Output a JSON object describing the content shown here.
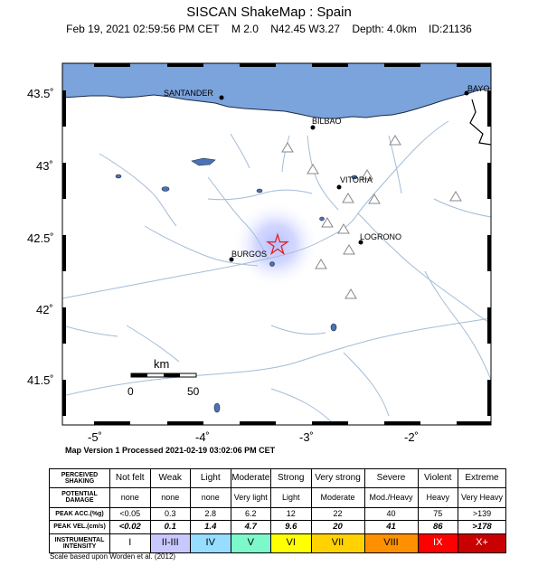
{
  "header": {
    "title": "SISCAN ShakeMap : Spain",
    "date": "Feb 19, 2021 02:59:56 PM CET",
    "magnitude": "M 2.0",
    "location": "N42.45 W3.27",
    "depth": "Depth: 4.0km",
    "event_id": "ID:21136"
  },
  "map": {
    "lat_ticks": [
      "43.5˚",
      "43˚",
      "42.5˚",
      "42˚",
      "41.5˚"
    ],
    "lon_ticks": [
      "-5˚",
      "-4˚",
      "-3˚",
      "-2˚"
    ],
    "scale_unit": "km",
    "scale_start": "0",
    "scale_end": "50",
    "cities": [
      {
        "name": "SANTANDER"
      },
      {
        "name": "BILBAO"
      },
      {
        "name": "VITORIA"
      },
      {
        "name": "LOGRONO"
      },
      {
        "name": "BURGOS"
      },
      {
        "name": "BAYO"
      }
    ],
    "colors": {
      "sea": "#7ba3dc",
      "rivers": "#a3bcd6",
      "lakes": "#4b72b5",
      "epicenter": "#e02020"
    }
  },
  "version_line": "Map Version 1 Processed 2021-02-19 03:02:06 PM CET",
  "legend": {
    "rows": {
      "shaking": {
        "label1": "PERCEIVED",
        "label2": "SHAKING",
        "values": [
          "Not felt",
          "Weak",
          "Light",
          "Moderate",
          "Strong",
          "Very strong",
          "Severe",
          "Violent",
          "Extreme"
        ]
      },
      "damage": {
        "label1": "POTENTIAL",
        "label2": "DAMAGE",
        "values": [
          "none",
          "none",
          "none",
          "Very light",
          "Light",
          "Moderate",
          "Mod./Heavy",
          "Heavy",
          "Very Heavy"
        ]
      },
      "acc": {
        "label1": "PEAK ACC.(%g)",
        "values": [
          "<0.05",
          "0.3",
          "2.8",
          "6.2",
          "12",
          "22",
          "40",
          "75",
          ">139"
        ]
      },
      "vel": {
        "label1": "PEAK VEL.(cm/s)",
        "values": [
          "<0.02",
          "0.1",
          "1.4",
          "4.7",
          "9.6",
          "20",
          "41",
          "86",
          ">178"
        ]
      },
      "intensity": {
        "label1": "INSTRUMENTAL",
        "label2": "INTENSITY",
        "values": [
          "I",
          "II-III",
          "IV",
          "V",
          "VI",
          "VII",
          "VIII",
          "IX",
          "X+"
        ]
      }
    },
    "intensity_colors": [
      "#ffffff",
      "#c8c8ff",
      "#96ddff",
      "#7df8ca",
      "#ffff00",
      "#ffd200",
      "#ff9100",
      "#ff0000",
      "#c80000"
    ]
  },
  "footnote": "Scale based upon Worden et al. (2012)"
}
